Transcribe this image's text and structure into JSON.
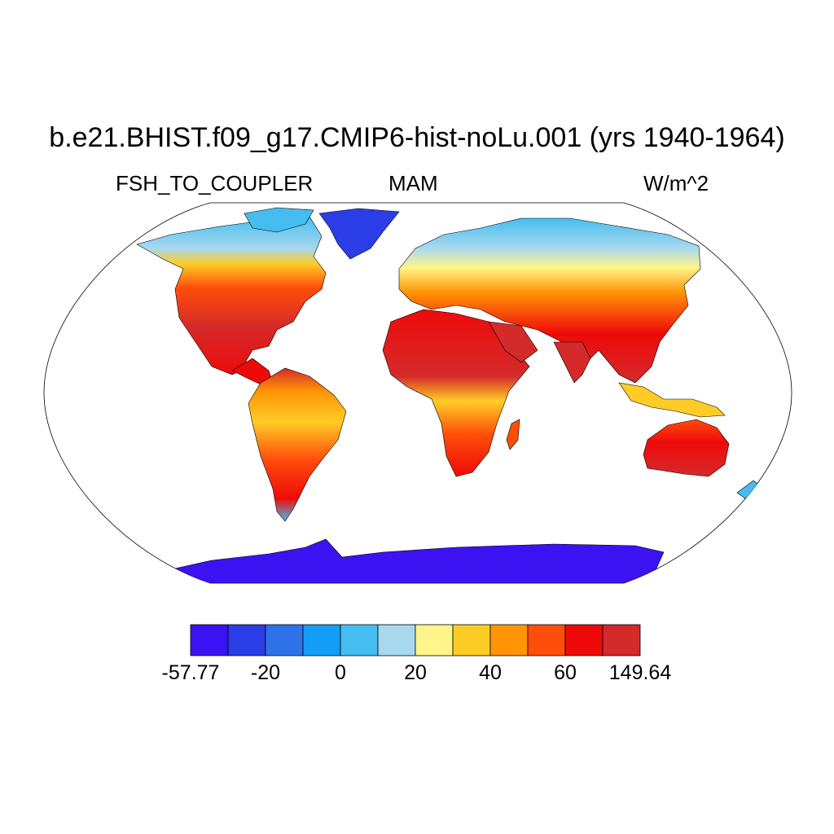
{
  "title": "b.e21.BHIST.f09_g17.CMIP6-hist-noLu.001 (yrs 1940-1964)",
  "variable": "FSH_TO_COUPLER",
  "season": "MAM",
  "units": "W/m^2",
  "colorbar": {
    "colors": [
      "#3b12f2",
      "#2a3de6",
      "#2f72e8",
      "#149ef7",
      "#45bdf0",
      "#a8d8ee",
      "#fff58a",
      "#ffcc26",
      "#ff9405",
      "#ff4d0a",
      "#ef0a0a",
      "#d42a2a"
    ],
    "labels": [
      "-57.77",
      "-20",
      "0",
      "20",
      "40",
      "60",
      "149.64"
    ]
  },
  "map": {
    "projection": "robinson",
    "ocean_color": "#ffffff",
    "coastline_color": "#000000"
  }
}
